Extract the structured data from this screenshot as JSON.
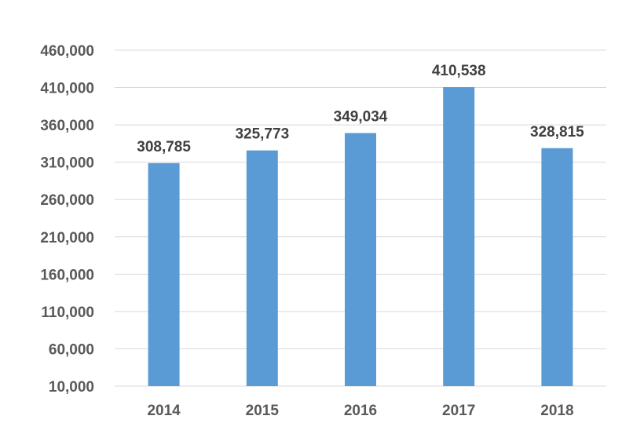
{
  "chart_data": {
    "type": "bar",
    "title": "",
    "xlabel": "",
    "ylabel": "",
    "categories": [
      "2014",
      "2015",
      "2016",
      "2017",
      "2018"
    ],
    "values": [
      308785,
      325773,
      349034,
      410538,
      328815
    ],
    "data_labels": [
      "308,785",
      "325,773",
      "349,034",
      "410,538",
      "328,815"
    ],
    "ylim": [
      10000,
      460000
    ],
    "yticks": [
      10000,
      60000,
      110000,
      160000,
      210000,
      260000,
      310000,
      360000,
      410000,
      460000
    ],
    "ytick_labels": [
      "10,000",
      "60,000",
      "110,000",
      "160,000",
      "210,000",
      "260,000",
      "310,000",
      "360,000",
      "410,000",
      "460,000"
    ],
    "grid": true,
    "legend": "none",
    "colors": {
      "bar": "#5b9bd5",
      "grid": "#d9d9d9",
      "tick_text": "#595959",
      "label_text": "#404040"
    }
  }
}
